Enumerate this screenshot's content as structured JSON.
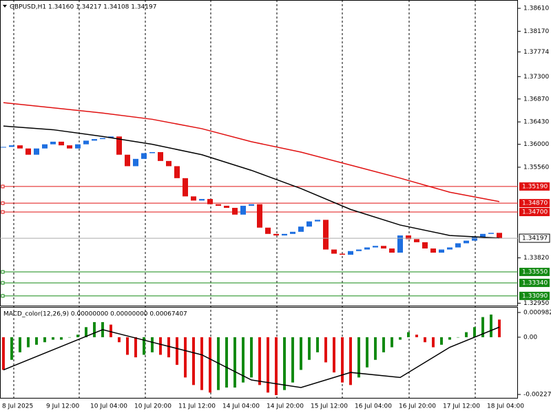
{
  "chart_data": [
    {
      "type": "candlestick",
      "title": "GBPUSD,H1  1.34160 1.34217 1.34108 1.34197",
      "up_color": "#1e6fe0",
      "down_color": "#e01010",
      "values": [
        1.3595,
        1.3598,
        1.3592,
        1.358,
        1.3592,
        1.36,
        1.3605,
        1.3598,
        1.3592,
        1.36,
        1.3607,
        1.361,
        1.3612,
        1.3615,
        1.358,
        1.3558,
        1.3572,
        1.3583,
        1.3585,
        1.3568,
        1.3558,
        1.3535,
        1.35,
        1.3492,
        1.3495,
        1.3485,
        1.3482,
        1.3478,
        1.3465,
        1.3482,
        1.3485,
        1.344,
        1.3428,
        1.3425,
        1.3428,
        1.3432,
        1.3442,
        1.3452,
        1.3455,
        1.3398,
        1.339,
        1.3388,
        1.3395,
        1.3398,
        1.3402,
        1.3405,
        1.34,
        1.3392,
        1.3425,
        1.3418,
        1.3412,
        1.34,
        1.3392,
        1.3398,
        1.3402,
        1.341,
        1.3415,
        1.3422,
        1.3428,
        1.343,
        1.34197
      ],
      "series": [
        {
          "color": "#e01010",
          "x": [
            0,
            6,
            12,
            18,
            24,
            30,
            36,
            42,
            48,
            54,
            60
          ],
          "values": [
            1.368,
            1.367,
            1.366,
            1.3648,
            1.363,
            1.3605,
            1.3585,
            1.356,
            1.3535,
            1.3508,
            1.349
          ]
        },
        {
          "color": "#000000",
          "x": [
            0,
            6,
            12,
            18,
            24,
            30,
            36,
            42,
            48,
            54,
            60
          ],
          "values": [
            1.3635,
            1.3628,
            1.3615,
            1.36,
            1.358,
            1.355,
            1.3515,
            1.3475,
            1.3445,
            1.3425,
            1.342
          ]
        }
      ],
      "levels": [
        {
          "value": 1.3519,
          "label": "1.35190",
          "color": "#e01010"
        },
        {
          "value": 1.3487,
          "label": "1.34870",
          "color": "#e01010"
        },
        {
          "value": 1.347,
          "label": "1.34700",
          "color": "#e01010"
        },
        {
          "value": 1.3355,
          "label": "1.33550",
          "color": "#138a13"
        },
        {
          "value": 1.3334,
          "label": "1.33340",
          "color": "#138a13"
        },
        {
          "value": 1.3309,
          "label": "1.33090",
          "color": "#138a13"
        }
      ],
      "current": {
        "value": 1.34197,
        "label": "1.34197"
      },
      "ylim": [
        1.3289,
        1.3877
      ],
      "yticks": [
        {
          "value": 1.3861,
          "label": "1.38610"
        },
        {
          "value": 1.3817,
          "label": "1.38170"
        },
        {
          "value": 1.37774,
          "label": "1.37774"
        },
        {
          "value": 1.373,
          "label": "1.37300"
        },
        {
          "value": 1.3687,
          "label": "1.36870"
        },
        {
          "value": 1.3643,
          "label": "1.36430"
        },
        {
          "value": 1.36,
          "label": "1.36000"
        },
        {
          "value": 1.3556,
          "label": "1.35560"
        },
        {
          "value": 1.3382,
          "label": "1.33820"
        },
        {
          "value": 1.3295,
          "label": "1.32950"
        }
      ],
      "x_labels": [
        "8 Jul 2025",
        "9 Jul 12:00",
        "10 Jul 04:00",
        "10 Jul 20:00",
        "11 Jul 12:00",
        "14 Jul 04:00",
        "14 Jul 20:00",
        "15 Jul 12:00",
        "16 Jul 04:00",
        "16 Jul 20:00",
        "17 Jul 12:00",
        "18 Jul 04:00"
      ]
    },
    {
      "type": "histogram",
      "title": "MACD_color(12,26,9) 0.00000000 0.00000000 0.00067407",
      "up_color": "#138a13",
      "down_color": "#e01010",
      "values": [
        -0.0013,
        -0.0009,
        -0.0006,
        -0.0004,
        -0.0003,
        -0.0002,
        -0.0001,
        -0.0001,
        0,
        0.0001,
        0.0004,
        0.0006,
        0.0006,
        0.0005,
        -0.0002,
        -0.0007,
        -0.0008,
        -0.0007,
        -0.0006,
        -0.0007,
        -0.0008,
        -0.0011,
        -0.0016,
        -0.0019,
        -0.0021,
        -0.0022,
        -0.0021,
        -0.002,
        -0.002,
        -0.0018,
        -0.0016,
        -0.0019,
        -0.0022,
        -0.0023,
        -0.0021,
        -0.0018,
        -0.0013,
        -0.0009,
        -0.0006,
        -0.001,
        -0.0014,
        -0.0018,
        -0.0019,
        -0.0016,
        -0.0012,
        -0.0009,
        -0.0006,
        -0.0004,
        -0.0001,
        0.0002,
        0.0001,
        -0.0002,
        -0.0004,
        -0.0003,
        -0.0001,
        0,
        0.0002,
        0.0004,
        0.0008,
        0.0009,
        0.0007
      ],
      "series": [
        {
          "color": "#000000",
          "x": [
            0,
            6,
            12,
            18,
            24,
            30,
            36,
            42,
            48,
            54,
            60
          ],
          "values": [
            -0.0013,
            -0.0005,
            0.0003,
            -0.0002,
            -0.0007,
            -0.0017,
            -0.002,
            -0.0014,
            -0.0016,
            -0.0004,
            0.0004
          ]
        }
      ],
      "ylim": [
        -0.00241,
        0.0012
      ],
      "yticks": [
        {
          "value": 0.000982,
          "label": "0.000982"
        },
        {
          "value": 0,
          "label": "0.00"
        },
        {
          "value": -0.002275,
          "label": "-0.002275"
        }
      ]
    }
  ]
}
